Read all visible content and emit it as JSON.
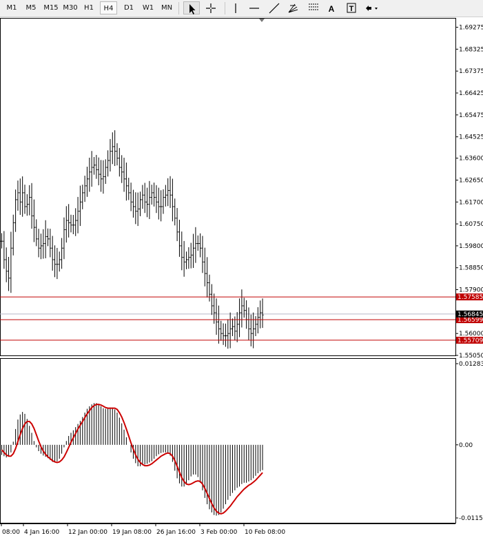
{
  "toolbar": {
    "timeframes": [
      "M1",
      "M5",
      "M15",
      "M30",
      "H1",
      "H4",
      "D1",
      "W1",
      "MN"
    ],
    "active_timeframe": "H4",
    "tools": [
      {
        "icon": "cursor-arrow-icon",
        "active": true
      },
      {
        "icon": "crosshair-icon"
      },
      {
        "icon": "vertical-line-icon"
      },
      {
        "icon": "horizontal-line-icon"
      },
      {
        "icon": "trendline-icon"
      },
      {
        "icon": "fibonacci-fan-icon",
        "letter": "E"
      },
      {
        "icon": "fibonacci-retracement-icon",
        "letter": "F"
      },
      {
        "icon": "text-icon",
        "letter": "A"
      },
      {
        "icon": "text-label-icon",
        "letter": "T"
      },
      {
        "icon": "arrows-dropdown-icon"
      }
    ]
  },
  "chart_data": [
    {
      "type": "candlestick-bars",
      "yaxis_ticks": [
        "1.69275",
        "1.68325",
        "1.67375",
        "1.66425",
        "1.65475",
        "1.64525",
        "1.63600",
        "1.62650",
        "1.61700",
        "1.60750",
        "1.59800",
        "1.58850",
        "1.57900",
        "1.56000",
        "1.55050"
      ],
      "ylim": [
        1.5505,
        1.6965
      ],
      "horizontal_lines": [
        {
          "value": 1.57585,
          "label": "1.57585",
          "color": "#c00000"
        },
        {
          "value": 1.56599,
          "label": "1.56599",
          "color": "#c00000"
        },
        {
          "value": 1.55709,
          "label": "1.55709",
          "color": "#c00000"
        }
      ],
      "current_price": {
        "value": 1.56845,
        "label": "1.56845",
        "color": "#000000"
      },
      "bid_line_color": "#b8b8c8",
      "xlabels": [
        "08:00",
        "4 Jan 16:00",
        "12 Jan 00:00",
        "19 Jan 08:00",
        "26 Jan 16:00",
        "3 Feb 00:00",
        "10 Feb 08:00"
      ],
      "close_series": [
        1.6,
        1.592,
        1.587,
        1.584,
        1.597,
        1.608,
        1.618,
        1.621,
        1.617,
        1.621,
        1.615,
        1.616,
        1.619,
        1.611,
        1.606,
        1.601,
        1.597,
        1.598,
        1.599,
        1.602,
        1.601,
        1.597,
        1.592,
        1.59,
        1.59,
        1.592,
        1.597,
        1.605,
        1.609,
        1.608,
        1.607,
        1.607,
        1.609,
        1.613,
        1.617,
        1.621,
        1.624,
        1.627,
        1.63,
        1.632,
        1.633,
        1.631,
        1.629,
        1.627,
        1.628,
        1.632,
        1.635,
        1.639,
        1.641,
        1.639,
        1.636,
        1.632,
        1.63,
        1.627,
        1.624,
        1.621,
        1.617,
        1.615,
        1.613,
        1.614,
        1.618,
        1.62,
        1.617,
        1.616,
        1.619,
        1.621,
        1.619,
        1.617,
        1.615,
        1.615,
        1.619,
        1.62,
        1.622,
        1.62,
        1.615,
        1.61,
        1.604,
        1.598,
        1.593,
        1.591,
        1.592,
        1.593,
        1.594,
        1.597,
        1.599,
        1.599,
        1.597,
        1.591,
        1.586,
        1.582,
        1.577,
        1.572,
        1.569,
        1.565,
        1.562,
        1.56,
        1.559,
        1.559,
        1.56,
        1.562,
        1.563,
        1.561,
        1.564,
        1.569,
        1.572,
        1.57,
        1.566,
        1.562,
        1.56,
        1.562,
        1.564,
        1.567,
        1.569,
        1.568
      ]
    },
    {
      "type": "macd-histogram",
      "yaxis_ticks": [
        "0.012837",
        "0.00",
        "-0.01157"
      ],
      "ylim": [
        -0.01157,
        0.012837
      ],
      "histogram": [
        -0.0016,
        -0.0018,
        -0.002,
        -0.0017,
        -0.0012,
        0.0005,
        0.0025,
        0.004,
        0.0048,
        0.0052,
        0.0049,
        0.0041,
        0.003,
        0.0019,
        0.0006,
        -0.0004,
        -0.001,
        -0.0014,
        -0.0017,
        -0.0019,
        -0.0021,
        -0.0024,
        -0.0027,
        -0.0028,
        -0.0026,
        -0.0022,
        -0.0014,
        -0.0004,
        0.0006,
        0.0014,
        0.0019,
        0.0023,
        0.0028,
        0.0033,
        0.0038,
        0.0044,
        0.0051,
        0.0057,
        0.0061,
        0.0064,
        0.0066,
        0.0066,
        0.0064,
        0.0061,
        0.0058,
        0.0057,
        0.0058,
        0.0059,
        0.0059,
        0.0056,
        0.0051,
        0.0043,
        0.0034,
        0.0024,
        0.0012,
        0.0,
        -0.0012,
        -0.0022,
        -0.0029,
        -0.0034,
        -0.0034,
        -0.0032,
        -0.0031,
        -0.003,
        -0.0028,
        -0.0026,
        -0.0022,
        -0.0018,
        -0.0015,
        -0.0013,
        -0.0012,
        -0.0012,
        -0.0013,
        -0.0017,
        -0.0027,
        -0.0041,
        -0.0053,
        -0.0061,
        -0.0066,
        -0.0066,
        -0.0062,
        -0.0056,
        -0.005,
        -0.0047,
        -0.0047,
        -0.0051,
        -0.006,
        -0.0072,
        -0.0084,
        -0.0094,
        -0.0102,
        -0.0107,
        -0.0111,
        -0.0112,
        -0.0111,
        -0.0107,
        -0.0101,
        -0.0094,
        -0.0087,
        -0.0081,
        -0.0076,
        -0.0072,
        -0.0068,
        -0.0066,
        -0.0062,
        -0.006,
        -0.006,
        -0.0058,
        -0.0056,
        -0.0053,
        -0.0049,
        -0.0045,
        -0.0042,
        -0.004
      ],
      "signal": [
        -0.0008,
        -0.0012,
        -0.0016,
        -0.0018,
        -0.0018,
        -0.0014,
        -0.0006,
        0.0005,
        0.0016,
        0.0026,
        0.0033,
        0.0037,
        0.0037,
        0.0033,
        0.0026,
        0.0016,
        0.0006,
        -0.0003,
        -0.001,
        -0.0015,
        -0.0019,
        -0.0022,
        -0.0025,
        -0.0027,
        -0.0028,
        -0.0027,
        -0.0024,
        -0.0019,
        -0.0012,
        -0.0004,
        0.0004,
        0.0011,
        0.0018,
        0.0025,
        0.0031,
        0.0037,
        0.0043,
        0.0049,
        0.0054,
        0.0059,
        0.0062,
        0.0064,
        0.0064,
        0.0063,
        0.0061,
        0.0059,
        0.0058,
        0.0058,
        0.0058,
        0.0058,
        0.0056,
        0.0051,
        0.0044,
        0.0035,
        0.0025,
        0.0014,
        0.0003,
        -0.0007,
        -0.0016,
        -0.0023,
        -0.0028,
        -0.0031,
        -0.0033,
        -0.0033,
        -0.0032,
        -0.003,
        -0.0027,
        -0.0024,
        -0.0021,
        -0.0018,
        -0.0016,
        -0.0014,
        -0.0013,
        -0.0014,
        -0.0018,
        -0.0025,
        -0.0034,
        -0.0043,
        -0.0052,
        -0.0058,
        -0.0062,
        -0.0063,
        -0.0062,
        -0.006,
        -0.0058,
        -0.0057,
        -0.0058,
        -0.0062,
        -0.0069,
        -0.0077,
        -0.0085,
        -0.0093,
        -0.01,
        -0.0105,
        -0.0108,
        -0.0109,
        -0.0108,
        -0.0105,
        -0.0101,
        -0.0097,
        -0.0092,
        -0.0087,
        -0.0082,
        -0.0078,
        -0.0074,
        -0.007,
        -0.0067,
        -0.0064,
        -0.0062,
        -0.0059,
        -0.0056,
        -0.0052,
        -0.0048,
        -0.0044
      ],
      "signal_color": "#cc0000"
    }
  ]
}
